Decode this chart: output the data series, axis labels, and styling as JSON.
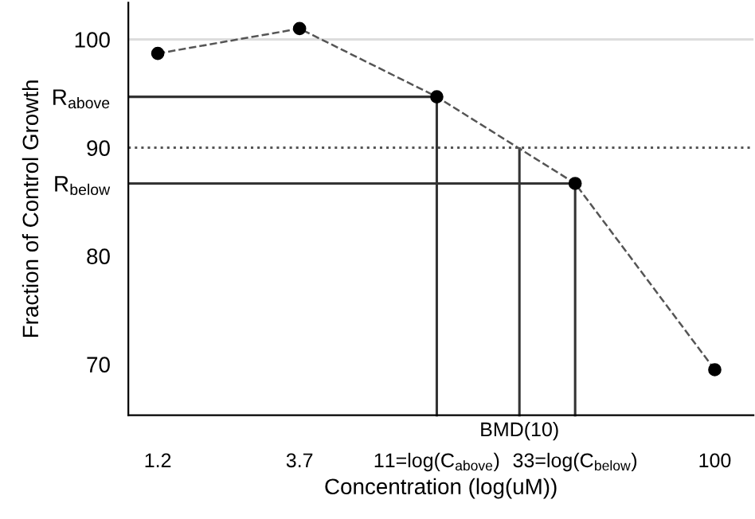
{
  "chart_data": {
    "type": "line",
    "xlabel": "Concentration (log(uM))",
    "ylabel": "Fraction of Control Growth",
    "x": [
      1.2,
      3.7,
      11,
      33,
      100
    ],
    "series": [
      {
        "color": "#555555",
        "values": [
          98.7,
          101.0,
          94.7,
          86.7,
          69.5
        ]
      }
    ],
    "log": "x",
    "xlim": [
      0.95,
      136
    ],
    "xticks": [
      1.2,
      3.7,
      {
        "value": 11,
        "label": "11=log(C$_{above}$)"
      },
      {
        "value": 33,
        "label": "33=log(C$_{below}$)"
      },
      100
    ],
    "ylim": [
      65.3,
      103.4
    ],
    "yticks": [
      70,
      80,
      {
        "value": 86.7,
        "label": "R$_{below}$"
      },
      90,
      {
        "value": 94.7,
        "label": "R$_{above}$"
      },
      100
    ],
    "ref_lines": [
      {
        "axis": "y",
        "value": 100,
        "color": "#dddddd",
        "line_style": "solid"
      },
      {
        "axis": "y",
        "value": 90,
        "color": "#555555",
        "line_style": "dotted"
      },
      {
        "axis": "y",
        "value": 94.7
      },
      {
        "axis": "y",
        "value": 86.7
      },
      {
        "axis": "x",
        "value": 11
      },
      {
        "axis": "x",
        "value": 33
      },
      {
        "axis": "x",
        "value": 21.2,
        "label": "BMD(10)"
      }
    ],
    "marker": "circle",
    "line_style": "dashed",
    "grid": false,
    "legend": false
  }
}
